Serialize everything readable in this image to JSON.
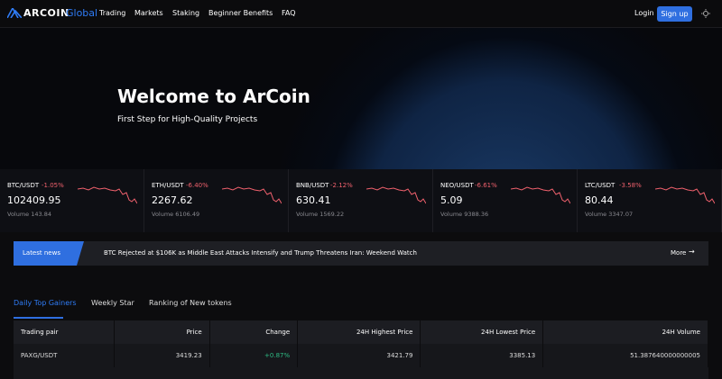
{
  "nav": {
    "logo": "ARCOIN",
    "logo_suffix": "Global",
    "links": [
      "Trading",
      "Markets",
      "Staking",
      "Beginner Benefits",
      "FAQ"
    ],
    "login": "Login",
    "signup": "Sign up"
  },
  "hero": {
    "title": "Welcome to ArCoin",
    "subtitle": "First Step for High-Quality Projects"
  },
  "tickers": [
    {
      "pair": "BTC/USDT",
      "change": "-1.05%",
      "price": "102409.95",
      "volume": "Volume 143.84"
    },
    {
      "pair": "ETH/USDT",
      "change": "-6.40%",
      "price": "2267.62",
      "volume": "Volume 6106.49"
    },
    {
      "pair": "BNB/USDT",
      "change": "-2.12%",
      "price": "630.41",
      "volume": "Volume 1569.22"
    },
    {
      "pair": "NEO/USDT",
      "change": "-6.61%",
      "price": "5.09",
      "volume": "Volume 9388.36"
    },
    {
      "pair": "LTC/USDT",
      "change": "-3.58%",
      "price": "80.44",
      "volume": "Volume 3347.07"
    }
  ],
  "news": {
    "label": "Latest news",
    "headline": "BTC Rejected at $106K as Middle East Attacks Intensify and Trump Threatens Iran: Weekend Watch",
    "more": "More"
  },
  "tabs": [
    "Daily Top Gainers",
    "Weekly Star",
    "Ranking of New tokens"
  ],
  "table": {
    "headers": [
      "Trading pair",
      "Price",
      "Change",
      "24H Highest Price",
      "24H Lowest Price",
      "24H Volume"
    ],
    "rows": [
      [
        "PAXG/USDT",
        "3419.23",
        "+0.87%",
        "3421.79",
        "3385.13",
        "51.387640000000005"
      ]
    ]
  }
}
